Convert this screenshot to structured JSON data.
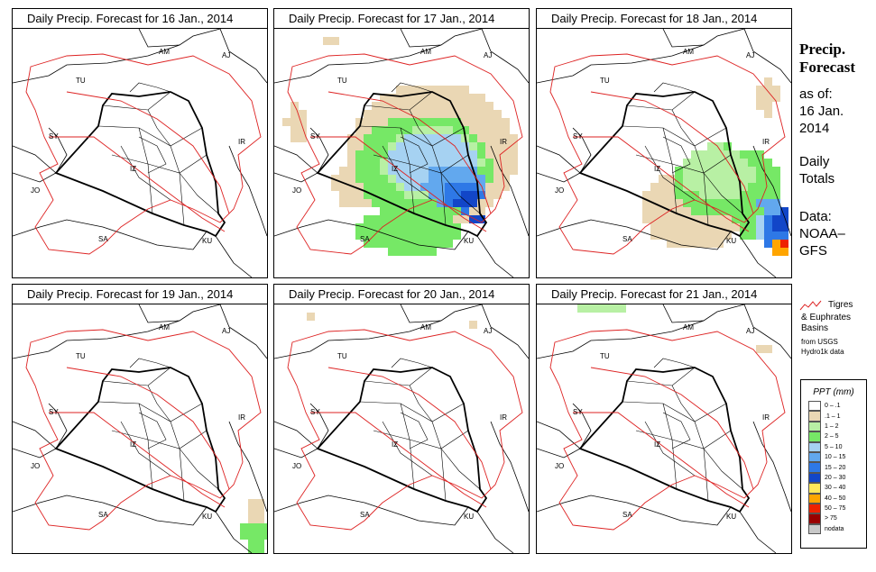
{
  "panels": [
    {
      "title": "Daily Precip. Forecast for  16 Jan., 2014",
      "precip": "d16"
    },
    {
      "title": "Daily Precip. Forecast for  17 Jan., 2014",
      "precip": "d17"
    },
    {
      "title": "Daily Precip. Forecast for  18 Jan., 2014",
      "precip": "d18"
    },
    {
      "title": "Daily Precip. Forecast for  19 Jan., 2014",
      "precip": "d19"
    },
    {
      "title": "Daily Precip. Forecast for  20 Jan., 2014",
      "precip": "d20"
    },
    {
      "title": "Daily Precip. Forecast for  21 Jan., 2014",
      "precip": "d21"
    }
  ],
  "country_labels": [
    "AM",
    "AJ",
    "TU",
    "SY",
    "IR",
    "JO",
    "SA",
    "KU",
    "IZ"
  ],
  "side": {
    "heading1": "Precip.",
    "heading2": "Forecast",
    "asof": "as of:",
    "date1": "16 Jan.",
    "date2": "2014",
    "daily1": "Daily",
    "daily2": "Totals",
    "data1": "Data:",
    "data2": "NOAA–",
    "data3": "GFS",
    "basin1": "Tigres",
    "basin2": "& Euphrates",
    "basin3": "Basins",
    "basin4": "from USGS",
    "basin5": "Hydro1k data"
  },
  "legend": {
    "title": "PPT (mm)",
    "items": [
      {
        "label": "0 – .1",
        "color": "#ffffff"
      },
      {
        "label": ".1 – 1",
        "color": "#ead7b4"
      },
      {
        "label": "1 – 2",
        "color": "#b8f0a4"
      },
      {
        "label": "2 – 5",
        "color": "#76e866"
      },
      {
        "label": "5 – 10",
        "color": "#a6d2f2"
      },
      {
        "label": "10 – 15",
        "color": "#62a8ee"
      },
      {
        "label": "15 – 20",
        "color": "#2e78e6"
      },
      {
        "label": "20 – 30",
        "color": "#1246c8"
      },
      {
        "label": "30 – 40",
        "color": "#ffe85a"
      },
      {
        "label": "40 – 50",
        "color": "#ffa500"
      },
      {
        "label": "50 – 75",
        "color": "#ee2200"
      },
      {
        "label": "> 75",
        "color": "#990000"
      },
      {
        "label": "nodata",
        "color": "#c8c8c8"
      }
    ]
  }
}
